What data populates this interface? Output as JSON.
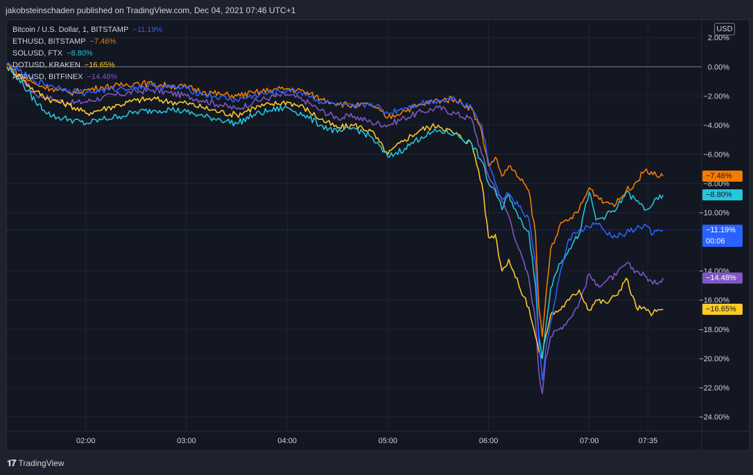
{
  "header": {
    "published_text": "jakobsteinschaden published on TradingView.com, Dec 04, 2021 07:46 UTC+1"
  },
  "footer": {
    "brand": "TradingView"
  },
  "currency_button": "USD",
  "chart_data": {
    "type": "line",
    "y_unit": "%",
    "ylim": [
      -25,
      3.2
    ],
    "y_ticks": [
      "2.00%",
      "0.00%",
      "−2.00%",
      "−4.00%",
      "−6.00%",
      "−8.00%",
      "−10.00%",
      "−14.00%",
      "−16.00%",
      "−18.00%",
      "−20.00%",
      "−22.00%",
      "−24.00%"
    ],
    "y_tick_values": [
      2,
      0,
      -2,
      -4,
      -6,
      -8,
      -10,
      -14,
      -16,
      -18,
      -20,
      -22,
      -24
    ],
    "x_ticks": [
      "02:00",
      "03:00",
      "04:00",
      "05:00",
      "06:00",
      "07:00",
      "07:35"
    ],
    "x_tick_minutes": [
      120,
      180,
      240,
      300,
      360,
      420,
      455
    ],
    "xlim_minutes": [
      73,
      487
    ],
    "legend_position": "top-left",
    "grid": true,
    "series": [
      {
        "name": "Bitcoin / U.S. Dollar, 1, BITSTAMP",
        "change": "−11.19%",
        "color": "#2962ff",
        "tag": "−11.19%",
        "tag_extra": "00:06",
        "points": [
          [
            73,
            0.2
          ],
          [
            80,
            -0.3
          ],
          [
            90,
            -1.0
          ],
          [
            100,
            -1.3
          ],
          [
            110,
            -1.6
          ],
          [
            120,
            -1.8
          ],
          [
            130,
            -1.6
          ],
          [
            140,
            -1.5
          ],
          [
            150,
            -1.4
          ],
          [
            160,
            -1.3
          ],
          [
            170,
            -1.4
          ],
          [
            180,
            -1.5
          ],
          [
            190,
            -1.9
          ],
          [
            200,
            -2.1
          ],
          [
            210,
            -2.3
          ],
          [
            220,
            -2.0
          ],
          [
            230,
            -1.8
          ],
          [
            240,
            -1.6
          ],
          [
            250,
            -1.8
          ],
          [
            260,
            -2.4
          ],
          [
            270,
            -2.6
          ],
          [
            280,
            -2.8
          ],
          [
            290,
            -2.5
          ],
          [
            300,
            -3.2
          ],
          [
            310,
            -2.8
          ],
          [
            320,
            -2.5
          ],
          [
            330,
            -2.3
          ],
          [
            340,
            -2.2
          ],
          [
            350,
            -2.8
          ],
          [
            356,
            -4.0
          ],
          [
            360,
            -6.5
          ],
          [
            364,
            -8.0
          ],
          [
            368,
            -9.0
          ],
          [
            372,
            -8.7
          ],
          [
            378,
            -9.6
          ],
          [
            384,
            -10.4
          ],
          [
            388,
            -13.5
          ],
          [
            390,
            -19.0
          ],
          [
            392,
            -21.5
          ],
          [
            394,
            -19.5
          ],
          [
            397,
            -17.5
          ],
          [
            402,
            -14.5
          ],
          [
            408,
            -11.8
          ],
          [
            414,
            -11.2
          ],
          [
            420,
            -11.0
          ],
          [
            424,
            -10.7
          ],
          [
            430,
            -11.4
          ],
          [
            436,
            -11.7
          ],
          [
            442,
            -11.4
          ],
          [
            448,
            -11.1
          ],
          [
            454,
            -10.9
          ],
          [
            458,
            -11.5
          ],
          [
            464,
            -11.2
          ]
        ]
      },
      {
        "name": "ETHUSD, BITSTAMP",
        "change": "−7.46%",
        "color": "#f57c00",
        "tag": "−7.46%",
        "points": [
          [
            73,
            0.2
          ],
          [
            80,
            -0.5
          ],
          [
            90,
            -1.2
          ],
          [
            100,
            -1.5
          ],
          [
            110,
            -1.8
          ],
          [
            120,
            -1.6
          ],
          [
            130,
            -1.4
          ],
          [
            140,
            -1.3
          ],
          [
            150,
            -1.1
          ],
          [
            160,
            -1.2
          ],
          [
            170,
            -1.3
          ],
          [
            180,
            -1.4
          ],
          [
            190,
            -1.7
          ],
          [
            200,
            -1.9
          ],
          [
            210,
            -2.0
          ],
          [
            220,
            -1.8
          ],
          [
            230,
            -1.6
          ],
          [
            240,
            -1.5
          ],
          [
            250,
            -1.7
          ],
          [
            260,
            -2.2
          ],
          [
            270,
            -2.5
          ],
          [
            280,
            -2.7
          ],
          [
            290,
            -2.6
          ],
          [
            300,
            -3.5
          ],
          [
            310,
            -3.0
          ],
          [
            320,
            -2.6
          ],
          [
            330,
            -2.3
          ],
          [
            340,
            -2.2
          ],
          [
            350,
            -2.9
          ],
          [
            356,
            -4.5
          ],
          [
            360,
            -6.8
          ],
          [
            364,
            -6.2
          ],
          [
            368,
            -7.5
          ],
          [
            372,
            -6.8
          ],
          [
            378,
            -7.6
          ],
          [
            384,
            -8.5
          ],
          [
            388,
            -11.5
          ],
          [
            390,
            -16.5
          ],
          [
            392,
            -18.5
          ],
          [
            394,
            -16.0
          ],
          [
            397,
            -12.5
          ],
          [
            402,
            -11.0
          ],
          [
            408,
            -10.5
          ],
          [
            414,
            -9.8
          ],
          [
            420,
            -8.3
          ],
          [
            424,
            -8.8
          ],
          [
            430,
            -9.3
          ],
          [
            436,
            -9.4
          ],
          [
            442,
            -8.5
          ],
          [
            448,
            -7.9
          ],
          [
            454,
            -7.0
          ],
          [
            458,
            -7.4
          ],
          [
            464,
            -7.5
          ]
        ]
      },
      {
        "name": "SOLUSD, FTX",
        "change": "−8.80%",
        "color": "#26c6da",
        "tag": "−8.80%",
        "points": [
          [
            73,
            0.0
          ],
          [
            80,
            -0.8
          ],
          [
            90,
            -2.4
          ],
          [
            100,
            -3.4
          ],
          [
            110,
            -3.6
          ],
          [
            120,
            -3.9
          ],
          [
            130,
            -3.6
          ],
          [
            140,
            -3.4
          ],
          [
            150,
            -3.1
          ],
          [
            160,
            -3.0
          ],
          [
            170,
            -2.9
          ],
          [
            180,
            -3.1
          ],
          [
            190,
            -3.4
          ],
          [
            200,
            -3.6
          ],
          [
            210,
            -3.9
          ],
          [
            220,
            -3.3
          ],
          [
            230,
            -3.0
          ],
          [
            240,
            -2.8
          ],
          [
            250,
            -3.3
          ],
          [
            260,
            -4.0
          ],
          [
            270,
            -4.5
          ],
          [
            280,
            -4.2
          ],
          [
            290,
            -4.8
          ],
          [
            300,
            -6.2
          ],
          [
            310,
            -5.6
          ],
          [
            320,
            -4.8
          ],
          [
            330,
            -4.4
          ],
          [
            340,
            -4.6
          ],
          [
            350,
            -5.3
          ],
          [
            356,
            -6.5
          ],
          [
            360,
            -8.0
          ],
          [
            364,
            -8.5
          ],
          [
            368,
            -9.8
          ],
          [
            372,
            -8.7
          ],
          [
            378,
            -10.4
          ],
          [
            384,
            -11.3
          ],
          [
            388,
            -15.0
          ],
          [
            390,
            -18.5
          ],
          [
            392,
            -20.0
          ],
          [
            394,
            -18.0
          ],
          [
            397,
            -15.2
          ],
          [
            402,
            -13.5
          ],
          [
            408,
            -12.5
          ],
          [
            414,
            -11.5
          ],
          [
            420,
            -8.6
          ],
          [
            424,
            -10.5
          ],
          [
            430,
            -10.2
          ],
          [
            436,
            -9.8
          ],
          [
            442,
            -8.6
          ],
          [
            448,
            -9.2
          ],
          [
            454,
            -9.8
          ],
          [
            458,
            -9.4
          ],
          [
            464,
            -8.8
          ]
        ]
      },
      {
        "name": "DOTUSD, KRAKEN",
        "change": "−16.65%",
        "color": "#ffca28",
        "tag": "−16.65%",
        "points": [
          [
            73,
            0.0
          ],
          [
            80,
            -0.6
          ],
          [
            90,
            -1.7
          ],
          [
            100,
            -2.3
          ],
          [
            110,
            -2.6
          ],
          [
            120,
            -3.2
          ],
          [
            130,
            -2.9
          ],
          [
            140,
            -2.6
          ],
          [
            150,
            -2.3
          ],
          [
            160,
            -2.2
          ],
          [
            170,
            -2.4
          ],
          [
            180,
            -2.5
          ],
          [
            190,
            -2.8
          ],
          [
            200,
            -3.1
          ],
          [
            210,
            -3.3
          ],
          [
            220,
            -2.8
          ],
          [
            230,
            -2.6
          ],
          [
            240,
            -2.4
          ],
          [
            250,
            -2.8
          ],
          [
            260,
            -3.6
          ],
          [
            270,
            -4.2
          ],
          [
            280,
            -4.0
          ],
          [
            290,
            -4.4
          ],
          [
            300,
            -6.0
          ],
          [
            310,
            -5.0
          ],
          [
            320,
            -4.3
          ],
          [
            330,
            -4.0
          ],
          [
            340,
            -4.6
          ],
          [
            350,
            -5.3
          ],
          [
            356,
            -8.0
          ],
          [
            360,
            -11.7
          ],
          [
            364,
            -11.5
          ],
          [
            368,
            -14.0
          ],
          [
            372,
            -13.2
          ],
          [
            378,
            -15.0
          ],
          [
            384,
            -16.5
          ],
          [
            388,
            -18.5
          ],
          [
            390,
            -19.5
          ],
          [
            392,
            -20.0
          ],
          [
            394,
            -18.5
          ],
          [
            397,
            -17.0
          ],
          [
            402,
            -16.7
          ],
          [
            408,
            -16.0
          ],
          [
            414,
            -15.3
          ],
          [
            420,
            -16.7
          ],
          [
            424,
            -16.0
          ],
          [
            430,
            -16.2
          ],
          [
            436,
            -15.7
          ],
          [
            442,
            -14.5
          ],
          [
            448,
            -16.5
          ],
          [
            454,
            -16.7
          ],
          [
            458,
            -16.9
          ],
          [
            464,
            -16.65
          ]
        ]
      },
      {
        "name": "ADAUSD, BITFINEX",
        "change": "−14.48%",
        "color": "#7e57c2",
        "tag": "−14.48%",
        "points": [
          [
            73,
            0.1
          ],
          [
            80,
            -0.5
          ],
          [
            90,
            -1.9
          ],
          [
            100,
            -2.2
          ],
          [
            110,
            -2.5
          ],
          [
            120,
            -2.4
          ],
          [
            130,
            -2.1
          ],
          [
            140,
            -1.9
          ],
          [
            150,
            -1.7
          ],
          [
            160,
            -1.6
          ],
          [
            170,
            -1.8
          ],
          [
            180,
            -2.0
          ],
          [
            190,
            -2.3
          ],
          [
            200,
            -2.6
          ],
          [
            210,
            -2.9
          ],
          [
            220,
            -2.4
          ],
          [
            230,
            -2.1
          ],
          [
            240,
            -1.9
          ],
          [
            250,
            -2.3
          ],
          [
            260,
            -3.0
          ],
          [
            270,
            -3.5
          ],
          [
            280,
            -3.4
          ],
          [
            290,
            -3.8
          ],
          [
            300,
            -4.0
          ],
          [
            310,
            -3.5
          ],
          [
            320,
            -3.1
          ],
          [
            330,
            -2.8
          ],
          [
            340,
            -3.2
          ],
          [
            350,
            -3.6
          ],
          [
            356,
            -6.0
          ],
          [
            360,
            -7.5
          ],
          [
            364,
            -8.3
          ],
          [
            368,
            -9.2
          ],
          [
            372,
            -10.2
          ],
          [
            378,
            -12.5
          ],
          [
            384,
            -14.5
          ],
          [
            388,
            -17.5
          ],
          [
            390,
            -21.0
          ],
          [
            392,
            -22.4
          ],
          [
            394,
            -20.0
          ],
          [
            397,
            -18.5
          ],
          [
            402,
            -18.0
          ],
          [
            408,
            -17.3
          ],
          [
            414,
            -16.2
          ],
          [
            420,
            -14.2
          ],
          [
            424,
            -15.0
          ],
          [
            430,
            -14.7
          ],
          [
            436,
            -14.3
          ],
          [
            442,
            -13.5
          ],
          [
            448,
            -14.0
          ],
          [
            454,
            -14.4
          ],
          [
            458,
            -14.9
          ],
          [
            464,
            -14.48
          ]
        ]
      }
    ],
    "reference_line": {
      "value": 0,
      "style": "solid"
    },
    "current_price_line": {
      "value": -11.19,
      "style": "dotted",
      "color": "#2962ff"
    }
  }
}
